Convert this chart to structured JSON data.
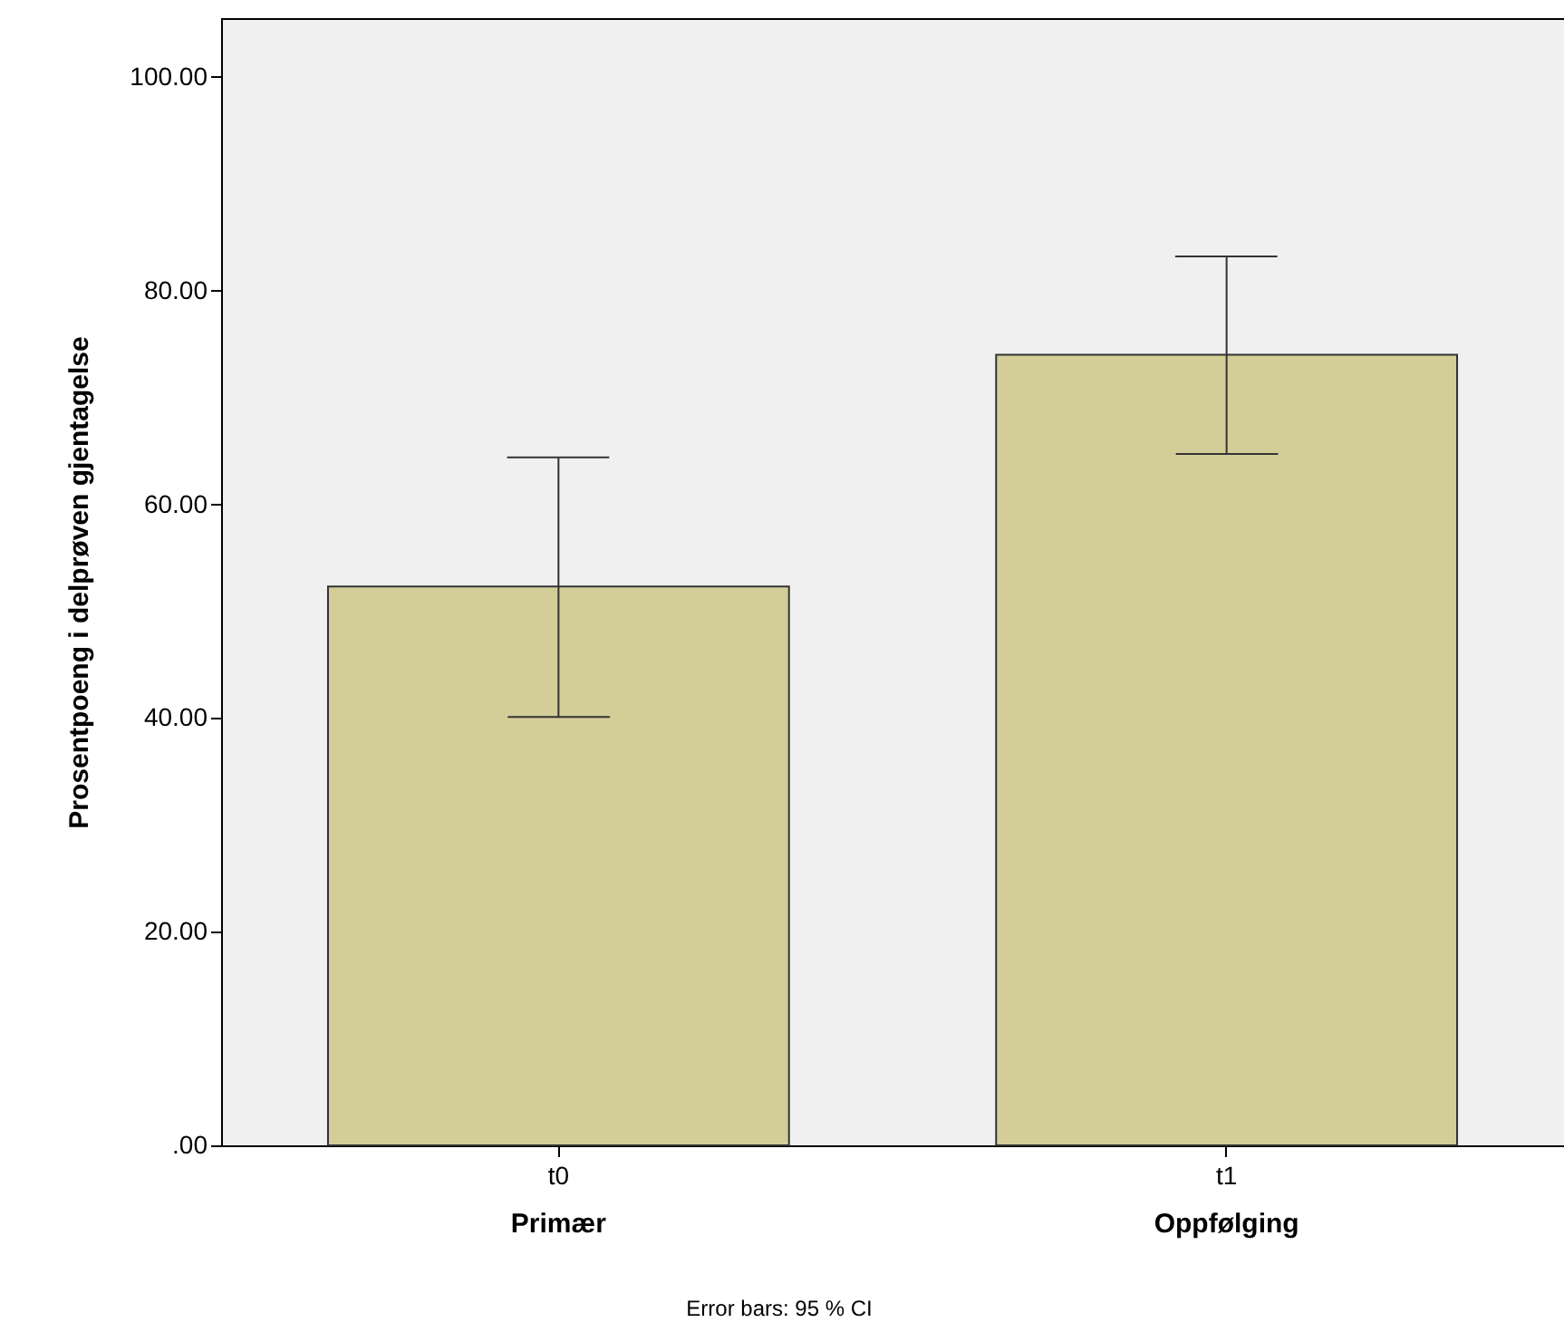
{
  "chart_data": {
    "type": "bar",
    "ylabel": "Prosentpoeng i delprøven gjentagelse",
    "categories": [
      "t0",
      "t1"
    ],
    "values": [
      52.3,
      74.0
    ],
    "color": "#d3ce98",
    "errors": [
      [
        40.1,
        64.4
      ],
      [
        64.7,
        83.2
      ]
    ],
    "ylim": [
      0,
      105.5
    ],
    "yticks": [
      {
        "value": 0,
        "label": ".00"
      },
      {
        "value": 20,
        "label": "20.00"
      },
      {
        "value": 40,
        "label": "40.00"
      },
      {
        "value": 60,
        "label": "60.00"
      },
      {
        "value": 80,
        "label": "80.00"
      },
      {
        "value": 100,
        "label": "100.00"
      }
    ],
    "grid": false,
    "annotations": [
      "Primær",
      "Oppfølging",
      "Error bars: 95 % CI"
    ]
  }
}
